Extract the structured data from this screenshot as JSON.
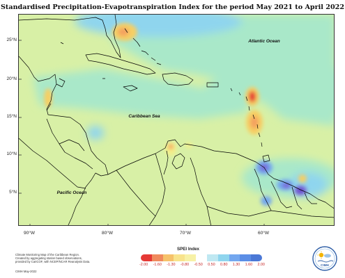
{
  "title": "Standardised Precipitation-Evapotranspiration Index for the period May 2021 to April 2022",
  "map": {
    "labels": {
      "atlantic": "Atlantic Ocean",
      "caribbean": "Caribbean Sea",
      "pacific": "Pacific Ocean"
    },
    "lat_labels": [
      "25°N",
      "20°N",
      "15°N",
      "10°N",
      "5°N"
    ],
    "lon_labels": [
      "90°W",
      "80°W",
      "70°W",
      "60°W"
    ],
    "colors": {
      "very_dry": "#e53935",
      "dry": "#f4a261",
      "moderately_dry": "#f6cf63",
      "slightly_dry": "#f3ef8a",
      "near_normal": "#d8f0a6",
      "slightly_wet": "#a9e8c9",
      "moderately_wet": "#8fd5ee",
      "wet": "#73a7ef",
      "very_wet": "#7a64d6",
      "extremely_wet": "#5e3bc4",
      "land_outline": "#000000"
    }
  },
  "footnote": {
    "line1": "Climate Monitoring Map of the Caribbean Region.",
    "line2": "Created by aggregating station based observations,",
    "line3": "provided by CariCOF, with NCEP/NCAR Reanalysis Data.",
    "copyright": "CIMH May-2022"
  },
  "legend": {
    "title": "SPEI Index",
    "ticks": [
      "-2.00",
      "-1.60",
      "-1.30",
      "-0.80",
      "-0.50",
      "0.50",
      "0.80",
      "1.30",
      "1.60",
      "2.00"
    ],
    "swatch_colors": [
      "#e53935",
      "#f08a5d",
      "#f6c26b",
      "#f8e38c",
      "#f7f1a6",
      "#ffffff",
      "#bfe8f2",
      "#8fd5ee",
      "#73a7ef",
      "#5b8ee6",
      "#4b78d6"
    ]
  },
  "logo": {
    "text": "CIMH",
    "icon": "cimh-sun-logo-icon"
  }
}
